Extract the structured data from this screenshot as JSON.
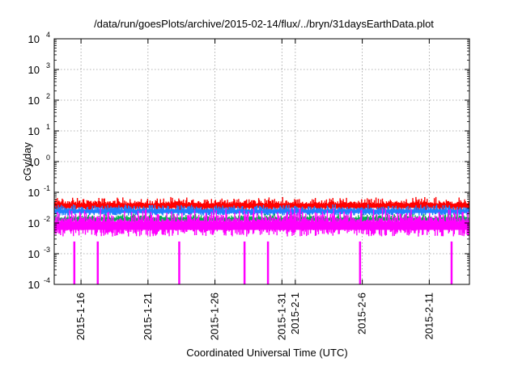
{
  "chart_data": {
    "type": "line",
    "title": "/data/run/goesPlots/archive/2015-02-14/flux/../bryn/31daysEarthData.plot",
    "xlabel": "Coordinated Universal Time (UTC)",
    "ylabel": "cGy/day",
    "yscale": "log",
    "ylim": [
      0.0001,
      10000
    ],
    "xlim": [
      "2015-01-14",
      "2015-02-14"
    ],
    "grid": true,
    "legend": "none",
    "y_ticks": [
      {
        "base": "10",
        "exp": "-4"
      },
      {
        "base": "10",
        "exp": "-3"
      },
      {
        "base": "10",
        "exp": "-2"
      },
      {
        "base": "10",
        "exp": "-1"
      },
      {
        "base": "10",
        "exp": "0"
      },
      {
        "base": "10",
        "exp": "1"
      },
      {
        "base": "10",
        "exp": "2"
      },
      {
        "base": "10",
        "exp": "3"
      },
      {
        "base": "10",
        "exp": "4"
      }
    ],
    "x_ticks": [
      {
        "date": "2015-01-16",
        "label": "2015-1-16"
      },
      {
        "date": "2015-01-21",
        "label": "2015-1-21"
      },
      {
        "date": "2015-01-26",
        "label": "2015-1-26"
      },
      {
        "date": "2015-01-31",
        "label": "2015-1-31"
      },
      {
        "date": "2015-02-01",
        "label": "2015-2-1"
      },
      {
        "date": "2015-02-06",
        "label": "2015-2-6"
      },
      {
        "date": "2015-02-11",
        "label": "2015-2-11"
      }
    ],
    "series": [
      {
        "color": "#ff0000",
        "min": 0.02,
        "max": 0.07
      },
      {
        "color": "#1f7fff",
        "min": 0.015,
        "max": 0.04
      },
      {
        "color": "#00b050",
        "min": 0.009,
        "max": 0.02
      },
      {
        "color": "#ff00ff",
        "min": 0.0025,
        "max": 0.03,
        "dropouts": [
          "2015-01-15 12:00",
          "2015-01-17 06:00",
          "2015-01-23 08:00",
          "2015-01-28 05:00",
          "2015-01-29 23:00",
          "2015-02-05 20:00",
          "2015-02-12 16:00"
        ]
      }
    ]
  }
}
